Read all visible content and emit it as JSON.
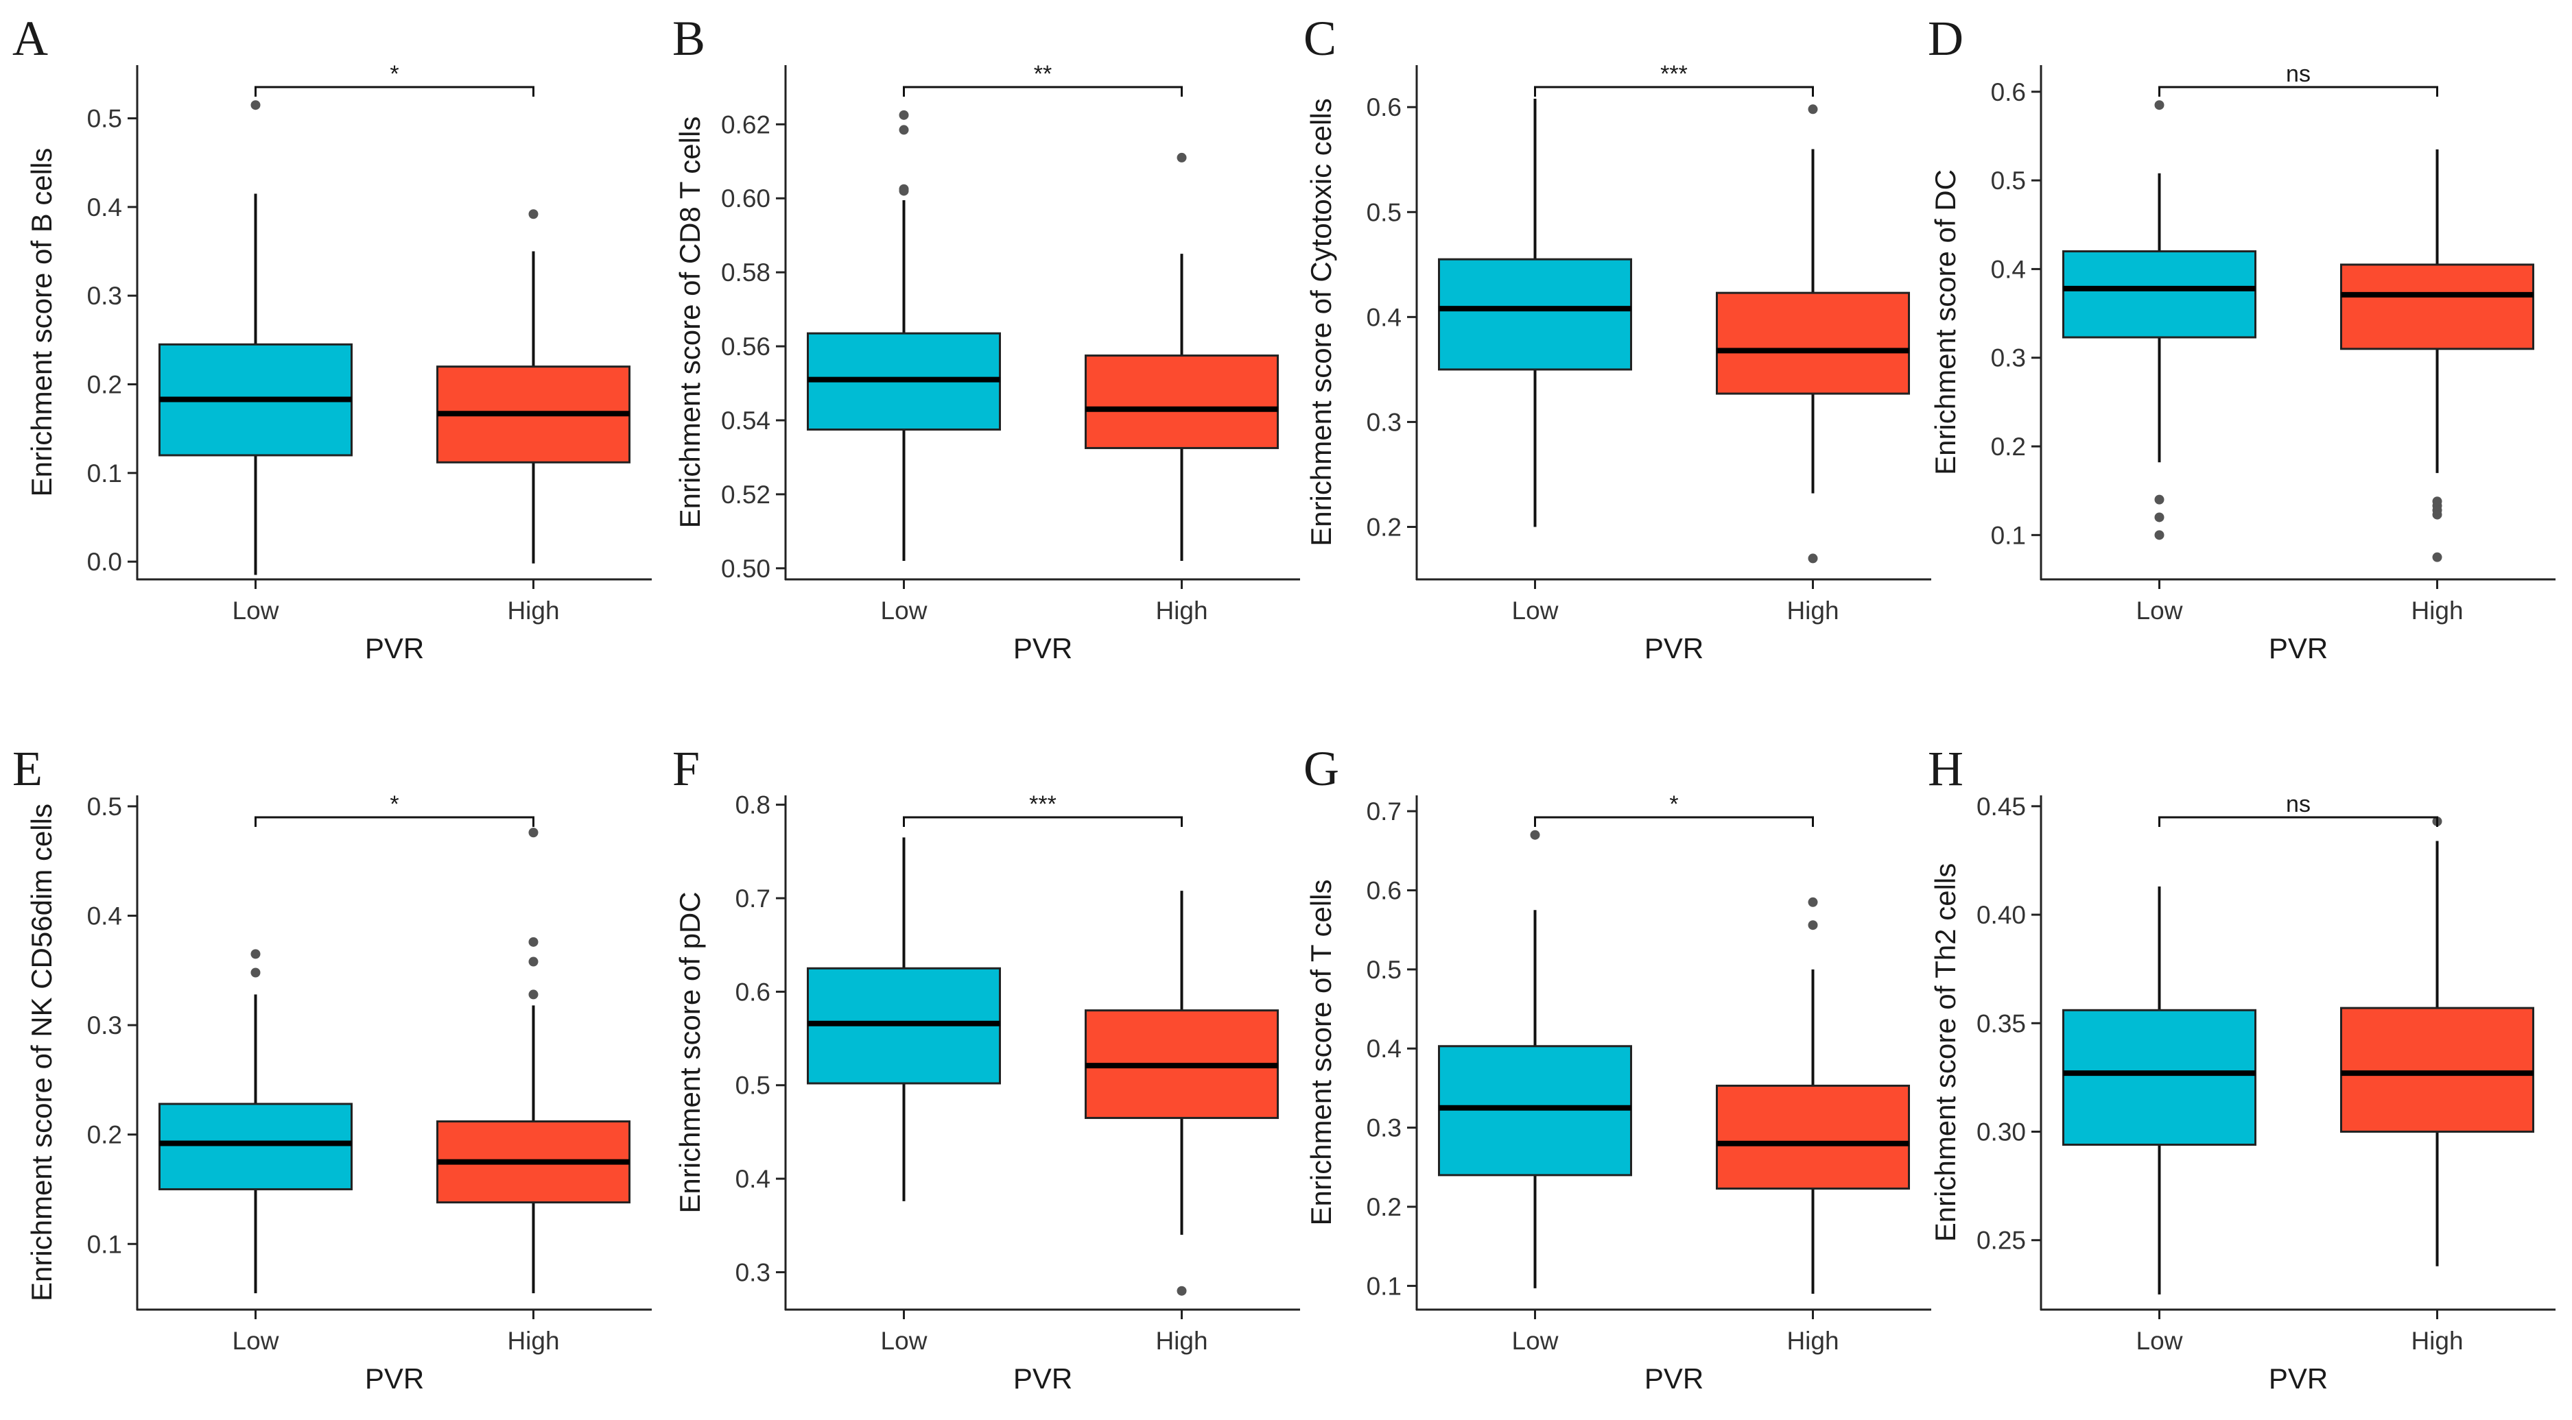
{
  "colors": {
    "low": "#00bcd4",
    "high": "#fc4b2f",
    "axis": "#222222",
    "median": "#000000",
    "outlier": "#555555"
  },
  "chart_data": [
    {
      "type": "box",
      "panel": "A",
      "xlabel": "PVR",
      "ylabel": "Enrichment score of B cells",
      "ylim": [
        -0.02,
        0.56
      ],
      "yticks": [
        "0.0",
        "0.1",
        "0.2",
        "0.3",
        "0.4",
        "0.5"
      ],
      "categories": [
        "Low",
        "High"
      ],
      "boxes": [
        {
          "category": "Low",
          "whisker_low": -0.015,
          "q1": 0.12,
          "median": 0.183,
          "q3": 0.245,
          "whisker_high": 0.415,
          "outliers": [
            0.515
          ]
        },
        {
          "category": "High",
          "whisker_low": -0.002,
          "q1": 0.112,
          "median": 0.167,
          "q3": 0.22,
          "whisker_high": 0.35,
          "outliers": [
            0.392
          ]
        }
      ],
      "significance": "*"
    },
    {
      "type": "box",
      "panel": "B",
      "xlabel": "PVR",
      "ylabel": "Enrichment score of CD8 T cells",
      "ylim": [
        0.497,
        0.636
      ],
      "yticks": [
        "0.50",
        "0.52",
        "0.54",
        "0.56",
        "0.58",
        "0.60",
        "0.62"
      ],
      "categories": [
        "Low",
        "High"
      ],
      "boxes": [
        {
          "category": "Low",
          "whisker_low": 0.502,
          "q1": 0.5375,
          "median": 0.551,
          "q3": 0.5635,
          "whisker_high": 0.5995,
          "outliers": [
            0.602,
            0.6025,
            0.6185,
            0.6225
          ]
        },
        {
          "category": "High",
          "whisker_low": 0.502,
          "q1": 0.5325,
          "median": 0.543,
          "q3": 0.5575,
          "whisker_high": 0.585,
          "outliers": [
            0.611
          ]
        }
      ],
      "significance": "**"
    },
    {
      "type": "box",
      "panel": "C",
      "xlabel": "PVR",
      "ylabel": "Enrichment score of Cytotoxic cells",
      "ylim": [
        0.15,
        0.64
      ],
      "yticks": [
        "0.2",
        "0.3",
        "0.4",
        "0.5",
        "0.6"
      ],
      "categories": [
        "Low",
        "High"
      ],
      "boxes": [
        {
          "category": "Low",
          "whisker_low": 0.2,
          "q1": 0.35,
          "median": 0.408,
          "q3": 0.455,
          "whisker_high": 0.608,
          "outliers": []
        },
        {
          "category": "High",
          "whisker_low": 0.232,
          "q1": 0.327,
          "median": 0.368,
          "q3": 0.423,
          "whisker_high": 0.56,
          "outliers": [
            0.17,
            0.598
          ]
        }
      ],
      "significance": "***"
    },
    {
      "type": "box",
      "panel": "D",
      "xlabel": "PVR",
      "ylabel": "Enrichment score of DC",
      "ylim": [
        0.05,
        0.63
      ],
      "yticks": [
        "0.1",
        "0.2",
        "0.3",
        "0.4",
        "0.5",
        "0.6"
      ],
      "categories": [
        "Low",
        "High"
      ],
      "boxes": [
        {
          "category": "Low",
          "whisker_low": 0.182,
          "q1": 0.323,
          "median": 0.378,
          "q3": 0.42,
          "whisker_high": 0.508,
          "outliers": [
            0.1,
            0.12,
            0.14,
            0.585
          ]
        },
        {
          "category": "High",
          "whisker_low": 0.17,
          "q1": 0.31,
          "median": 0.371,
          "q3": 0.405,
          "whisker_high": 0.535,
          "outliers": [
            0.075,
            0.123,
            0.128,
            0.133,
            0.138
          ]
        }
      ],
      "significance": "ns"
    },
    {
      "type": "box",
      "panel": "E",
      "xlabel": "PVR",
      "ylabel": "Enrichment score of NK CD56dim cells",
      "ylim": [
        0.04,
        0.51
      ],
      "yticks": [
        "0.1",
        "0.2",
        "0.3",
        "0.4",
        "0.5"
      ],
      "categories": [
        "Low",
        "High"
      ],
      "boxes": [
        {
          "category": "Low",
          "whisker_low": 0.055,
          "q1": 0.15,
          "median": 0.192,
          "q3": 0.228,
          "whisker_high": 0.328,
          "outliers": [
            0.348,
            0.365
          ]
        },
        {
          "category": "High",
          "whisker_low": 0.055,
          "q1": 0.138,
          "median": 0.175,
          "q3": 0.212,
          "whisker_high": 0.318,
          "outliers": [
            0.328,
            0.358,
            0.376,
            0.476
          ]
        }
      ],
      "significance": "*"
    },
    {
      "type": "box",
      "panel": "F",
      "xlabel": "PVR",
      "ylabel": "Enrichment score of pDC",
      "ylim": [
        0.26,
        0.81
      ],
      "yticks": [
        "0.3",
        "0.4",
        "0.5",
        "0.6",
        "0.7",
        "0.8"
      ],
      "categories": [
        "Low",
        "High"
      ],
      "boxes": [
        {
          "category": "Low",
          "whisker_low": 0.376,
          "q1": 0.502,
          "median": 0.566,
          "q3": 0.625,
          "whisker_high": 0.765,
          "outliers": []
        },
        {
          "category": "High",
          "whisker_low": 0.34,
          "q1": 0.465,
          "median": 0.521,
          "q3": 0.58,
          "whisker_high": 0.708,
          "outliers": [
            0.28
          ]
        }
      ],
      "significance": "***"
    },
    {
      "type": "box",
      "panel": "G",
      "xlabel": "PVR",
      "ylabel": "Enrichment score of T cells",
      "ylim": [
        0.07,
        0.72
      ],
      "yticks": [
        "0.1",
        "0.2",
        "0.3",
        "0.4",
        "0.5",
        "0.6",
        "0.7"
      ],
      "categories": [
        "Low",
        "High"
      ],
      "boxes": [
        {
          "category": "Low",
          "whisker_low": 0.097,
          "q1": 0.24,
          "median": 0.325,
          "q3": 0.403,
          "whisker_high": 0.575,
          "outliers": [
            0.67
          ]
        },
        {
          "category": "High",
          "whisker_low": 0.09,
          "q1": 0.223,
          "median": 0.28,
          "q3": 0.353,
          "whisker_high": 0.5,
          "outliers": [
            0.556,
            0.585
          ]
        }
      ],
      "significance": "*"
    },
    {
      "type": "box",
      "panel": "H",
      "xlabel": "PVR",
      "ylabel": "Enrichment score of Th2 cells",
      "ylim": [
        0.218,
        0.455
      ],
      "yticks": [
        "0.25",
        "0.30",
        "0.35",
        "0.40",
        "0.45"
      ],
      "categories": [
        "Low",
        "High"
      ],
      "boxes": [
        {
          "category": "Low",
          "whisker_low": 0.225,
          "q1": 0.294,
          "median": 0.327,
          "q3": 0.356,
          "whisker_high": 0.413,
          "outliers": []
        },
        {
          "category": "High",
          "whisker_low": 0.238,
          "q1": 0.3,
          "median": 0.327,
          "q3": 0.357,
          "whisker_high": 0.434,
          "outliers": [
            0.443
          ]
        }
      ],
      "significance": "ns"
    }
  ]
}
